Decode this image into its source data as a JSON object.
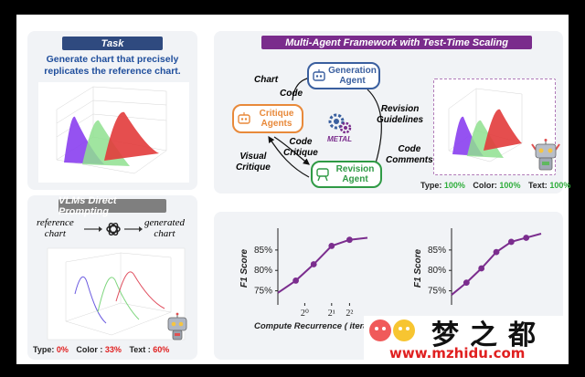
{
  "task": {
    "title": "Task",
    "description_line1": "Generate chart that precisely",
    "description_line2": "replicates the reference chart."
  },
  "direct": {
    "title": "VLMs Direct Prompting",
    "reference_line1": "reference",
    "reference_line2": "chart",
    "generated_line1": "generated",
    "generated_line2": "chart",
    "type_label": "Type:",
    "type_value": "0%",
    "color_label": "Color :",
    "color_value": "33%",
    "text_label": "Text :",
    "text_value": "60%"
  },
  "framework": {
    "title": "Multi-Agent Framework with Test-Time Scaling",
    "generation_agent_line1": "Generation",
    "generation_agent_line2": "Agent",
    "critique_agent_line1": "Critique",
    "critique_agent_line2": "Agents",
    "revision_agent_line1": "Revision",
    "revision_agent_line2": "Agent",
    "label_chart": "Chart",
    "label_code": "Code",
    "label_revision_guidelines_1": "Revision",
    "label_revision_guidelines_2": "Guidelines",
    "label_code_critique_1": "Code",
    "label_code_critique_2": "Critique",
    "label_visual_critique_1": "Visual",
    "label_visual_critique_2": "Critique",
    "label_code_comments_1": "Code",
    "label_code_comments_2": "Comments",
    "metal_label": "METAL",
    "type_label": "Type:",
    "type_value": "100%",
    "color_label": "Color:",
    "color_value": "100%",
    "text_label": "Text:",
    "text_value": "100%"
  },
  "chart_data": [
    {
      "type": "line",
      "ylabel": "F1 Score",
      "xlabel": "Compute Recurrence ( iterat",
      "xticks": [
        "2⁰",
        "2¹",
        "2²"
      ],
      "yticks": [
        "75%",
        "80%",
        "85%"
      ],
      "ylim": [
        72,
        89
      ],
      "x": [
        0,
        1,
        2,
        3,
        4,
        5
      ],
      "values": [
        74.5,
        77.5,
        81.5,
        86.0,
        87.5,
        88.0
      ],
      "marker_count": 4,
      "color": "#7b2d8e"
    },
    {
      "type": "line",
      "ylabel": "F1 Score",
      "xlabel": "",
      "xticks": [],
      "yticks": [
        "75%",
        "80%",
        "85%"
      ],
      "ylim": [
        72,
        89
      ],
      "x": [
        0,
        1,
        2,
        3,
        4,
        5,
        6
      ],
      "values": [
        74.0,
        77.0,
        80.5,
        84.5,
        87.0,
        88.0,
        89.0
      ],
      "marker_count": 5,
      "color": "#7b2d8e"
    }
  ],
  "watermark": {
    "brand": "梦之都",
    "url": "www.mzhidu.com"
  },
  "colors": {
    "header_blue": "#2f4a7f",
    "header_gray": "#7f7f7f",
    "header_purple": "#7a2c8c",
    "agent_blue": "#3a5f9f",
    "agent_orange": "#e8893a",
    "agent_green": "#2f9a45",
    "score_green": "#2fae3b",
    "score_red": "#e02020"
  }
}
